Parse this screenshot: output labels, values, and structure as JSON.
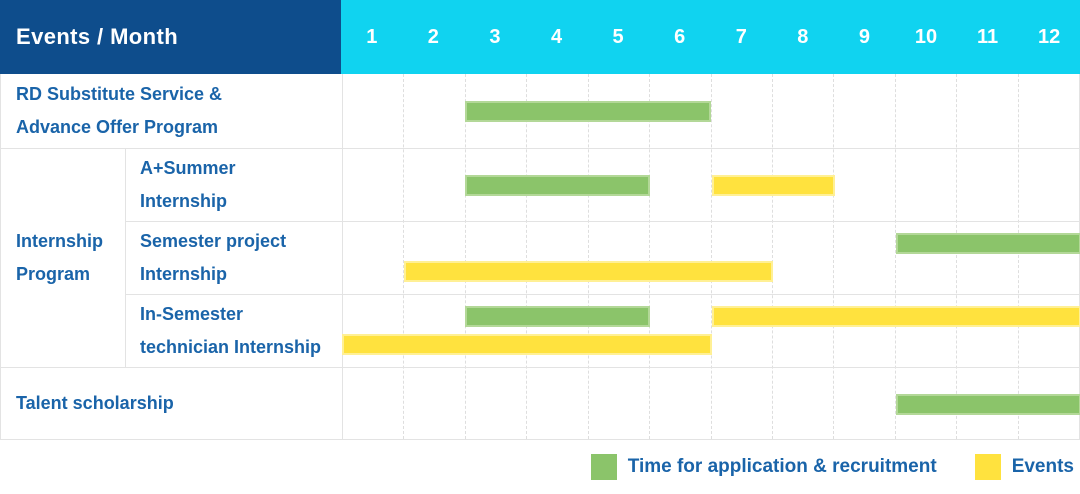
{
  "table": {
    "corner_label": "Events / Month",
    "months": [
      "1",
      "2",
      "3",
      "4",
      "5",
      "6",
      "7",
      "8",
      "9",
      "10",
      "11",
      "12"
    ]
  },
  "group": {
    "id": "internship-program",
    "label": "Internship\nProgram"
  },
  "rows": [
    {
      "id": "rd-substitute-service",
      "indent": false,
      "label": "RD Substitute Service &\nAdvance Offer Program",
      "bars": [
        {
          "series": "recruitment",
          "start": 3,
          "end": 6,
          "lane": "mid"
        }
      ]
    },
    {
      "id": "a-plus-summer-internship",
      "indent": true,
      "label": "A+Summer\nInternship",
      "bars": [
        {
          "series": "recruitment",
          "start": 3,
          "end": 5,
          "lane": "mid"
        },
        {
          "series": "event",
          "start": 7,
          "end": 8,
          "lane": "mid"
        }
      ]
    },
    {
      "id": "semester-project-internship",
      "indent": true,
      "label": "Semester project\nInternship",
      "bars": [
        {
          "series": "recruitment",
          "start": 10,
          "end": 12,
          "lane": "top"
        },
        {
          "series": "event",
          "start": 2,
          "end": 7,
          "lane": "bottom"
        }
      ]
    },
    {
      "id": "in-semester-technician-internship",
      "indent": true,
      "label": "In-Semester\ntechnician Internship",
      "bars": [
        {
          "series": "recruitment",
          "start": 3,
          "end": 5,
          "lane": "top"
        },
        {
          "series": "event",
          "start": 7,
          "end": 12,
          "lane": "top"
        },
        {
          "series": "event",
          "start": 1,
          "end": 6,
          "lane": "bottom"
        }
      ]
    },
    {
      "id": "talent-scholarship",
      "indent": false,
      "label": "Talent scholarship",
      "bars": [
        {
          "series": "recruitment",
          "start": 10,
          "end": 12,
          "lane": "mid"
        }
      ]
    }
  ],
  "legend": [
    {
      "series": "recruitment",
      "label": "Time for application & recruitment",
      "color": "#8BC46A"
    },
    {
      "series": "event",
      "label": "Events",
      "color": "#FFE23E"
    }
  ],
  "colors": {
    "header_bg": "#0E4D8C",
    "months_bg": "#10D3F0",
    "recruitment": "#8BC46A",
    "event": "#FFE23E",
    "label_text": "#1A64A9",
    "grid_line": "#E3E3E3"
  },
  "chart_data": {
    "type": "bar",
    "subtype": "gantt",
    "title": "Events / Month",
    "x_axis": {
      "label": "Month",
      "ticks": [
        1,
        2,
        3,
        4,
        5,
        6,
        7,
        8,
        9,
        10,
        11,
        12
      ],
      "range": [
        1,
        12
      ]
    },
    "grid": true,
    "legend_position": "bottom-right",
    "series_names": [
      "Time for application & recruitment",
      "Events"
    ],
    "rows": [
      {
        "event": "RD Substitute Service & Advance Offer Program",
        "group": null,
        "bars": [
          {
            "series": "Time for application & recruitment",
            "months": [
              3,
              6
            ]
          }
        ]
      },
      {
        "event": "A+Summer Internship",
        "group": "Internship Program",
        "bars": [
          {
            "series": "Time for application & recruitment",
            "months": [
              3,
              5
            ]
          },
          {
            "series": "Events",
            "months": [
              7,
              8
            ]
          }
        ]
      },
      {
        "event": "Semester project Internship",
        "group": "Internship Program",
        "bars": [
          {
            "series": "Time for application & recruitment",
            "months": [
              10,
              12
            ]
          },
          {
            "series": "Events",
            "months": [
              2,
              7
            ]
          }
        ]
      },
      {
        "event": "In-Semester technician Internship",
        "group": "Internship Program",
        "bars": [
          {
            "series": "Time for application & recruitment",
            "months": [
              3,
              5
            ]
          },
          {
            "series": "Events",
            "months": [
              7,
              12
            ]
          },
          {
            "series": "Events",
            "months": [
              1,
              6
            ]
          }
        ]
      },
      {
        "event": "Talent scholarship",
        "group": null,
        "bars": [
          {
            "series": "Time for application & recruitment",
            "months": [
              10,
              12
            ]
          }
        ]
      }
    ]
  }
}
